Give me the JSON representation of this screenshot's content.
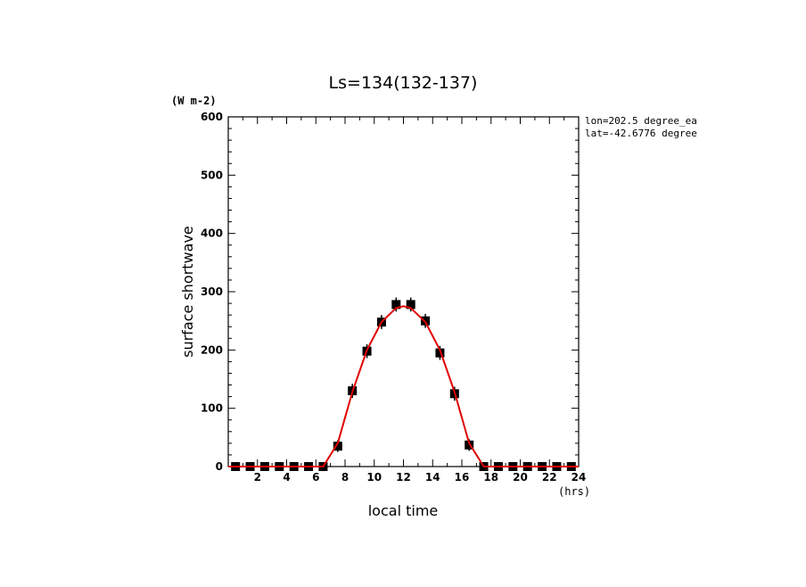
{
  "chart_data": {
    "type": "line",
    "title": "Ls=134(132-137)",
    "xlabel": "local time",
    "xunit": "(hrs)",
    "ylabel": "surface shortwave",
    "yunit": "(W m-2)",
    "xlim": [
      0,
      24
    ],
    "ylim": [
      0,
      600
    ],
    "xticks": [
      2,
      4,
      6,
      8,
      10,
      12,
      14,
      16,
      18,
      20,
      22,
      24
    ],
    "yticks": [
      0,
      100,
      200,
      300,
      400,
      500,
      600
    ],
    "grid": false,
    "annotations": [
      "lon=202.5 degree_ea",
      "lat=-42.6776 degree"
    ],
    "series": [
      {
        "kind": "observations",
        "style": "filled-square-with-errorbar",
        "color": "#000000",
        "x": [
          0.5,
          1.5,
          2.5,
          3.5,
          4.5,
          5.5,
          6.5,
          7.5,
          8.5,
          9.5,
          10.5,
          11.5,
          12.5,
          13.5,
          14.5,
          15.5,
          16.5,
          17.5,
          18.5,
          19.5,
          20.5,
          21.5,
          22.5,
          23.5
        ],
        "y": [
          0,
          0,
          0,
          0,
          0,
          0,
          0,
          35,
          130,
          198,
          248,
          278,
          278,
          250,
          195,
          125,
          37,
          0,
          0,
          0,
          0,
          0,
          0,
          0
        ],
        "err": [
          0,
          0,
          0,
          0,
          0,
          0,
          0,
          10,
          12,
          12,
          12,
          12,
          12,
          12,
          12,
          12,
          10,
          0,
          0,
          0,
          0,
          0,
          0,
          0
        ]
      },
      {
        "kind": "model",
        "style": "line",
        "color": "#e00000",
        "x": [
          0,
          0.5,
          1.5,
          2.5,
          3.5,
          4.5,
          5.5,
          6.5,
          7.5,
          8.5,
          9.5,
          10.5,
          11.5,
          12,
          12.5,
          13.5,
          14.5,
          15.5,
          16.5,
          17.5,
          18.5,
          19.5,
          20.5,
          21.5,
          22.5,
          23.5,
          24
        ],
        "y": [
          0,
          0,
          0,
          0,
          0,
          0,
          0,
          0,
          40,
          128,
          200,
          248,
          272,
          275,
          272,
          248,
          200,
          128,
          40,
          0,
          0,
          0,
          0,
          0,
          0,
          0,
          0
        ]
      }
    ]
  }
}
